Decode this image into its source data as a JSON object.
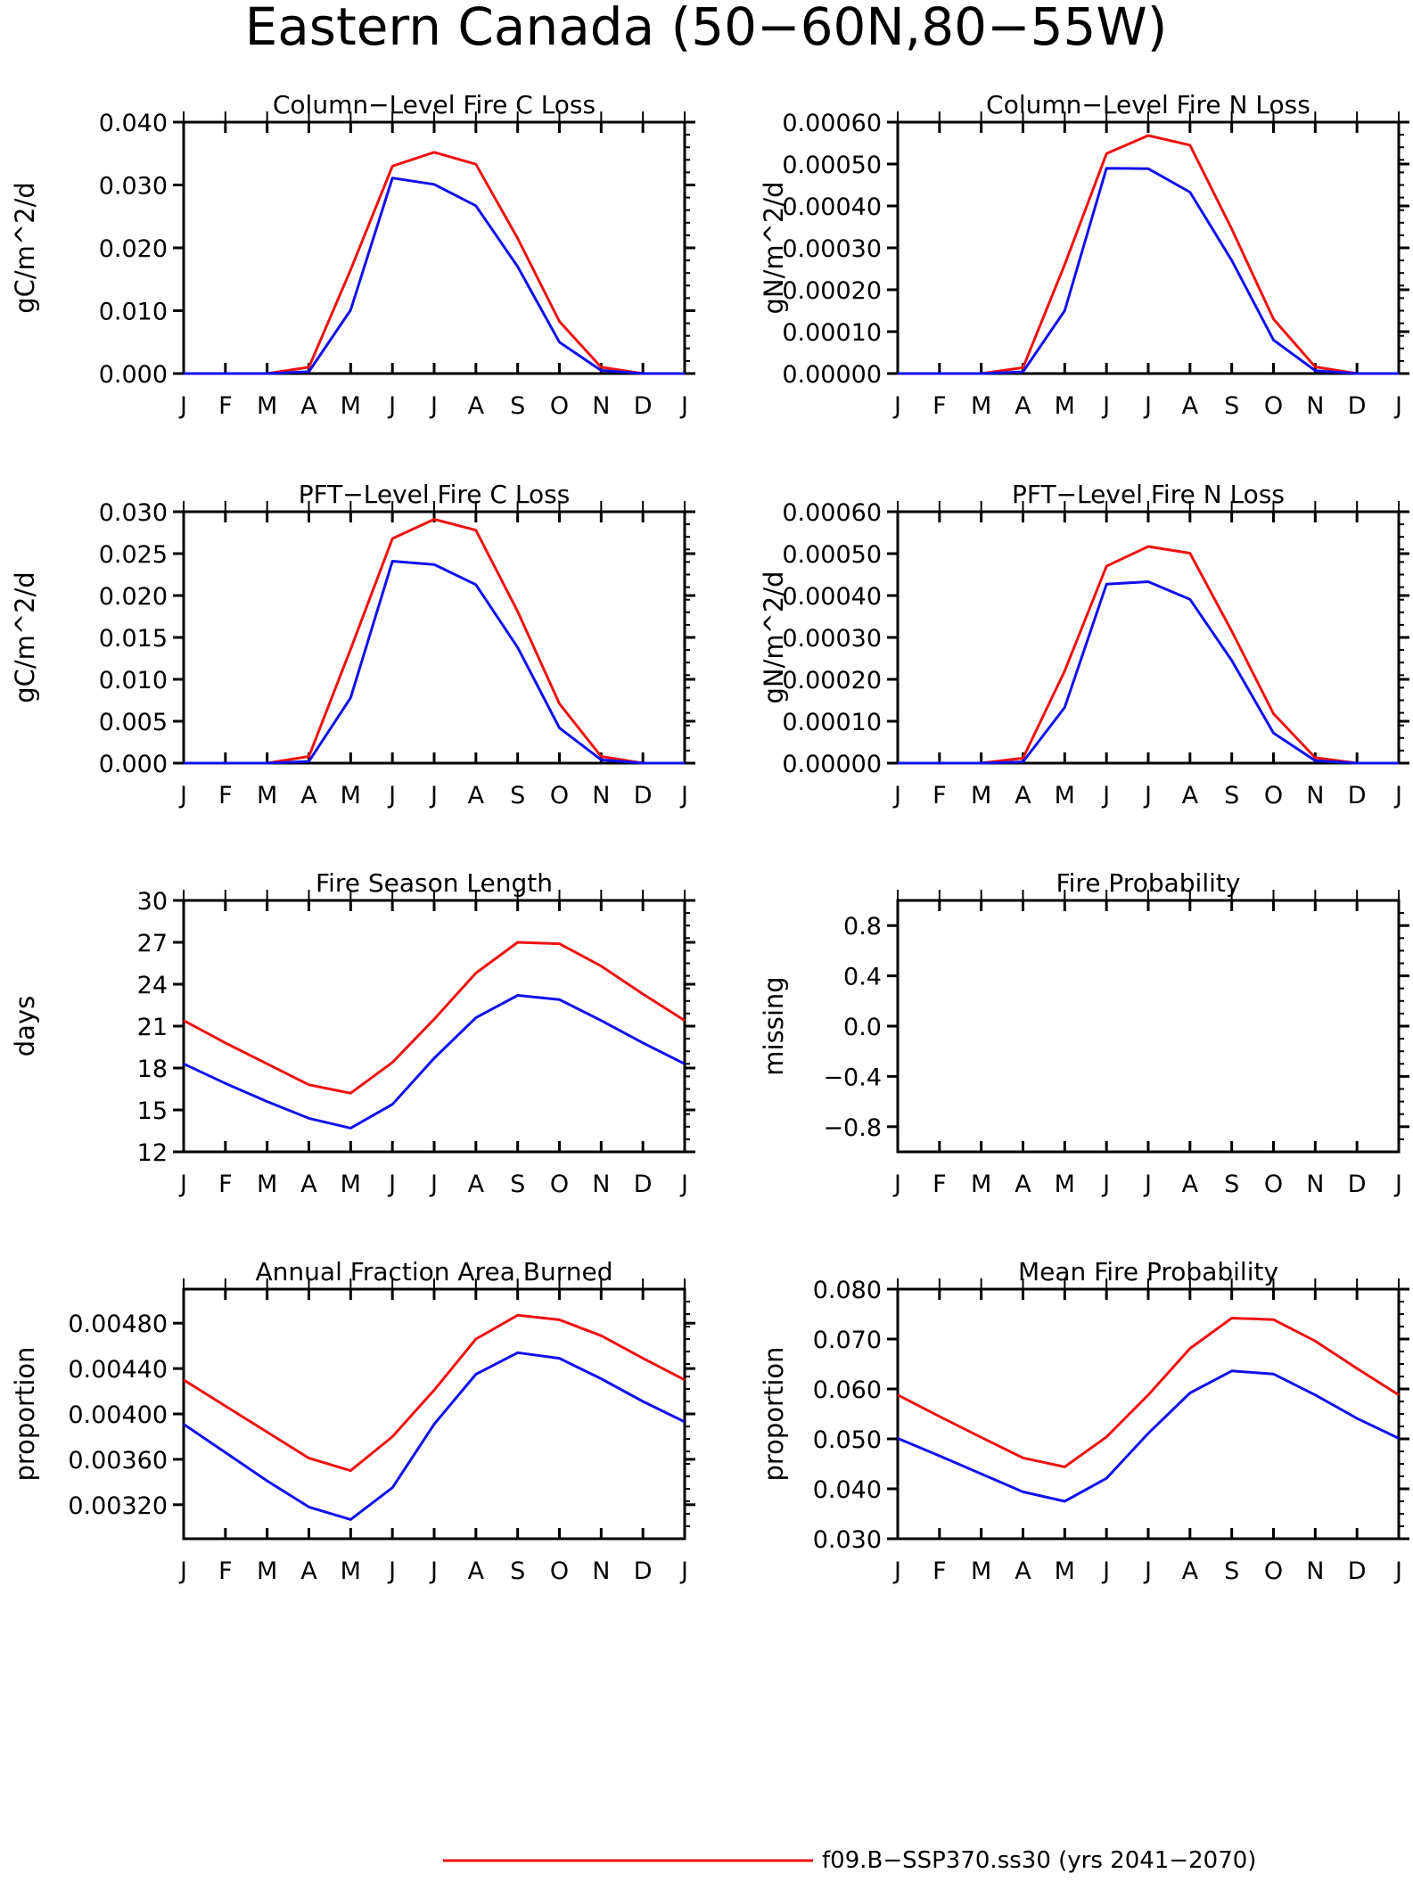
{
  "title": "Eastern Canada (50−60N,80−55W)",
  "colors": {
    "series_1": "#ee1111",
    "series_2": "#1010ee",
    "axis": "#000000"
  },
  "legend": [
    {
      "label": "f09.B−SSP370.ss30 (yrs 2041−2070)",
      "color": "#ee1111"
    }
  ],
  "chart_data": [
    {
      "id": "col-c",
      "type": "line",
      "title": "Column−Level Fire C Loss",
      "ylabel": "gC/m^2/d",
      "categories": [
        "J",
        "F",
        "M",
        "A",
        "M",
        "J",
        "J",
        "A",
        "S",
        "O",
        "N",
        "D",
        "J"
      ],
      "ylim": [
        0,
        0.04
      ],
      "yticks": [
        "0.000",
        "0.010",
        "0.020",
        "0.030",
        "0.040"
      ],
      "series": [
        {
          "values": [
            0,
            0,
            0,
            0.001,
            0.0165,
            0.033,
            0.0352,
            0.0333,
            0.0215,
            0.0083,
            0.001,
            0,
            0
          ]
        },
        {
          "values": [
            0,
            0,
            0,
            0.0003,
            0.0101,
            0.0311,
            0.0301,
            0.0267,
            0.017,
            0.005,
            0.0005,
            0,
            0
          ]
        }
      ]
    },
    {
      "id": "col-n",
      "type": "line",
      "title": "Column−Level Fire N Loss",
      "ylabel": "gN/m^2/d",
      "categories": [
        "J",
        "F",
        "M",
        "A",
        "M",
        "J",
        "J",
        "A",
        "S",
        "O",
        "N",
        "D",
        "J"
      ],
      "ylim": [
        0,
        0.0006
      ],
      "yticks": [
        "0.00000",
        "0.00010",
        "0.00020",
        "0.00030",
        "0.00040",
        "0.00050",
        "0.00060"
      ],
      "series": [
        {
          "values": [
            0,
            0,
            0,
            1.4e-05,
            0.00026,
            0.000525,
            0.000568,
            0.000545,
            0.000345,
            0.00013,
            1.6e-05,
            0,
            0
          ]
        },
        {
          "values": [
            0,
            0,
            0,
            4e-06,
            0.00015,
            0.00049,
            0.000489,
            0.000433,
            0.00027,
            8e-05,
            7e-06,
            0,
            0
          ]
        }
      ]
    },
    {
      "id": "pft-c",
      "type": "line",
      "title": "PFT−Level Fire C Loss",
      "ylabel": "gC/m^2/d",
      "categories": [
        "J",
        "F",
        "M",
        "A",
        "M",
        "J",
        "J",
        "A",
        "S",
        "O",
        "N",
        "D",
        "J"
      ],
      "ylim": [
        0,
        0.03
      ],
      "yticks": [
        "0.000",
        "0.005",
        "0.010",
        "0.015",
        "0.020",
        "0.025",
        "0.030"
      ],
      "series": [
        {
          "values": [
            0,
            0,
            0,
            0.0008,
            0.0136,
            0.0268,
            0.0291,
            0.0278,
            0.0181,
            0.0071,
            0.0008,
            0,
            0
          ]
        },
        {
          "values": [
            0,
            0,
            0,
            0.0002,
            0.0078,
            0.0241,
            0.0237,
            0.0213,
            0.0138,
            0.0042,
            0.0004,
            0,
            0
          ]
        }
      ]
    },
    {
      "id": "pft-n",
      "type": "line",
      "title": "PFT−Level Fire N Loss",
      "ylabel": "gN/m^2/d",
      "categories": [
        "J",
        "F",
        "M",
        "A",
        "M",
        "J",
        "J",
        "A",
        "S",
        "O",
        "N",
        "D",
        "J"
      ],
      "ylim": [
        0,
        0.0006
      ],
      "yticks": [
        "0.00000",
        "0.00010",
        "0.00020",
        "0.00030",
        "0.00040",
        "0.00050",
        "0.00060"
      ],
      "series": [
        {
          "values": [
            0,
            0,
            0,
            1.2e-05,
            0.00022,
            0.00047,
            0.000517,
            0.000501,
            0.000315,
            0.000118,
            1.3e-05,
            0,
            0
          ]
        },
        {
          "values": [
            0,
            0,
            0,
            3e-06,
            0.000133,
            0.000427,
            0.000433,
            0.000391,
            0.000245,
            7.2e-05,
            6e-06,
            0,
            0
          ]
        }
      ]
    },
    {
      "id": "season",
      "type": "line",
      "title": "Fire Season Length",
      "ylabel": "days",
      "categories": [
        "J",
        "F",
        "M",
        "A",
        "M",
        "J",
        "J",
        "A",
        "S",
        "O",
        "N",
        "D",
        "J"
      ],
      "ylim": [
        12,
        30
      ],
      "yticks": [
        "12",
        "15",
        "18",
        "21",
        "24",
        "27",
        "30"
      ],
      "series": [
        {
          "values": [
            21.4,
            19.8,
            18.3,
            16.8,
            16.2,
            18.4,
            21.5,
            24.8,
            27.0,
            26.9,
            25.3,
            23.3,
            21.4
          ]
        },
        {
          "values": [
            18.3,
            16.9,
            15.6,
            14.4,
            13.7,
            15.4,
            18.7,
            21.6,
            23.2,
            22.9,
            21.4,
            19.8,
            18.3
          ]
        }
      ]
    },
    {
      "id": "prob",
      "type": "line",
      "title": "Fire Probability",
      "ylabel": "missing",
      "categories": [
        "J",
        "F",
        "M",
        "A",
        "M",
        "J",
        "J",
        "A",
        "S",
        "O",
        "N",
        "D",
        "J"
      ],
      "ylim": [
        -1,
        1
      ],
      "yticks": [
        "−0.8",
        "−0.4",
        "0.0",
        "0.4",
        "0.8"
      ],
      "ytick_values": [
        -0.8,
        -0.4,
        0,
        0.4,
        0.8
      ],
      "series": []
    },
    {
      "id": "afab",
      "type": "line",
      "title": "Annual Fraction Area Burned",
      "ylabel": "proportion",
      "categories": [
        "J",
        "F",
        "M",
        "A",
        "M",
        "J",
        "J",
        "A",
        "S",
        "O",
        "N",
        "D",
        "J"
      ],
      "ylim": [
        0.0029,
        0.0051
      ],
      "yticks": [
        "0.00320",
        "0.00360",
        "0.00400",
        "0.00440",
        "0.00480"
      ],
      "ytick_values": [
        0.0032,
        0.0036,
        0.004,
        0.0044,
        0.0048
      ],
      "series": [
        {
          "values": [
            0.0043,
            0.00407,
            0.00384,
            0.00361,
            0.0035,
            0.0038,
            0.00421,
            0.00466,
            0.00487,
            0.00483,
            0.00469,
            0.00449,
            0.0043
          ]
        },
        {
          "values": [
            0.00391,
            0.00366,
            0.00341,
            0.00318,
            0.00307,
            0.00335,
            0.00391,
            0.00435,
            0.00454,
            0.00449,
            0.00431,
            0.00411,
            0.00393
          ]
        }
      ]
    },
    {
      "id": "mfp",
      "type": "line",
      "title": "Mean Fire Probability",
      "ylabel": "proportion",
      "categories": [
        "J",
        "F",
        "M",
        "A",
        "M",
        "J",
        "J",
        "A",
        "S",
        "O",
        "N",
        "D",
        "J"
      ],
      "ylim": [
        0.03,
        0.08
      ],
      "yticks": [
        "0.030",
        "0.040",
        "0.050",
        "0.060",
        "0.070",
        "0.080"
      ],
      "series": [
        {
          "values": [
            0.0588,
            0.0545,
            0.0503,
            0.0462,
            0.0444,
            0.0504,
            0.0588,
            0.0681,
            0.0742,
            0.0739,
            0.0696,
            0.0641,
            0.0588
          ]
        },
        {
          "values": [
            0.0501,
            0.0466,
            0.043,
            0.0394,
            0.0375,
            0.0421,
            0.0511,
            0.0592,
            0.0636,
            0.063,
            0.0588,
            0.0541,
            0.0501
          ]
        }
      ]
    }
  ]
}
